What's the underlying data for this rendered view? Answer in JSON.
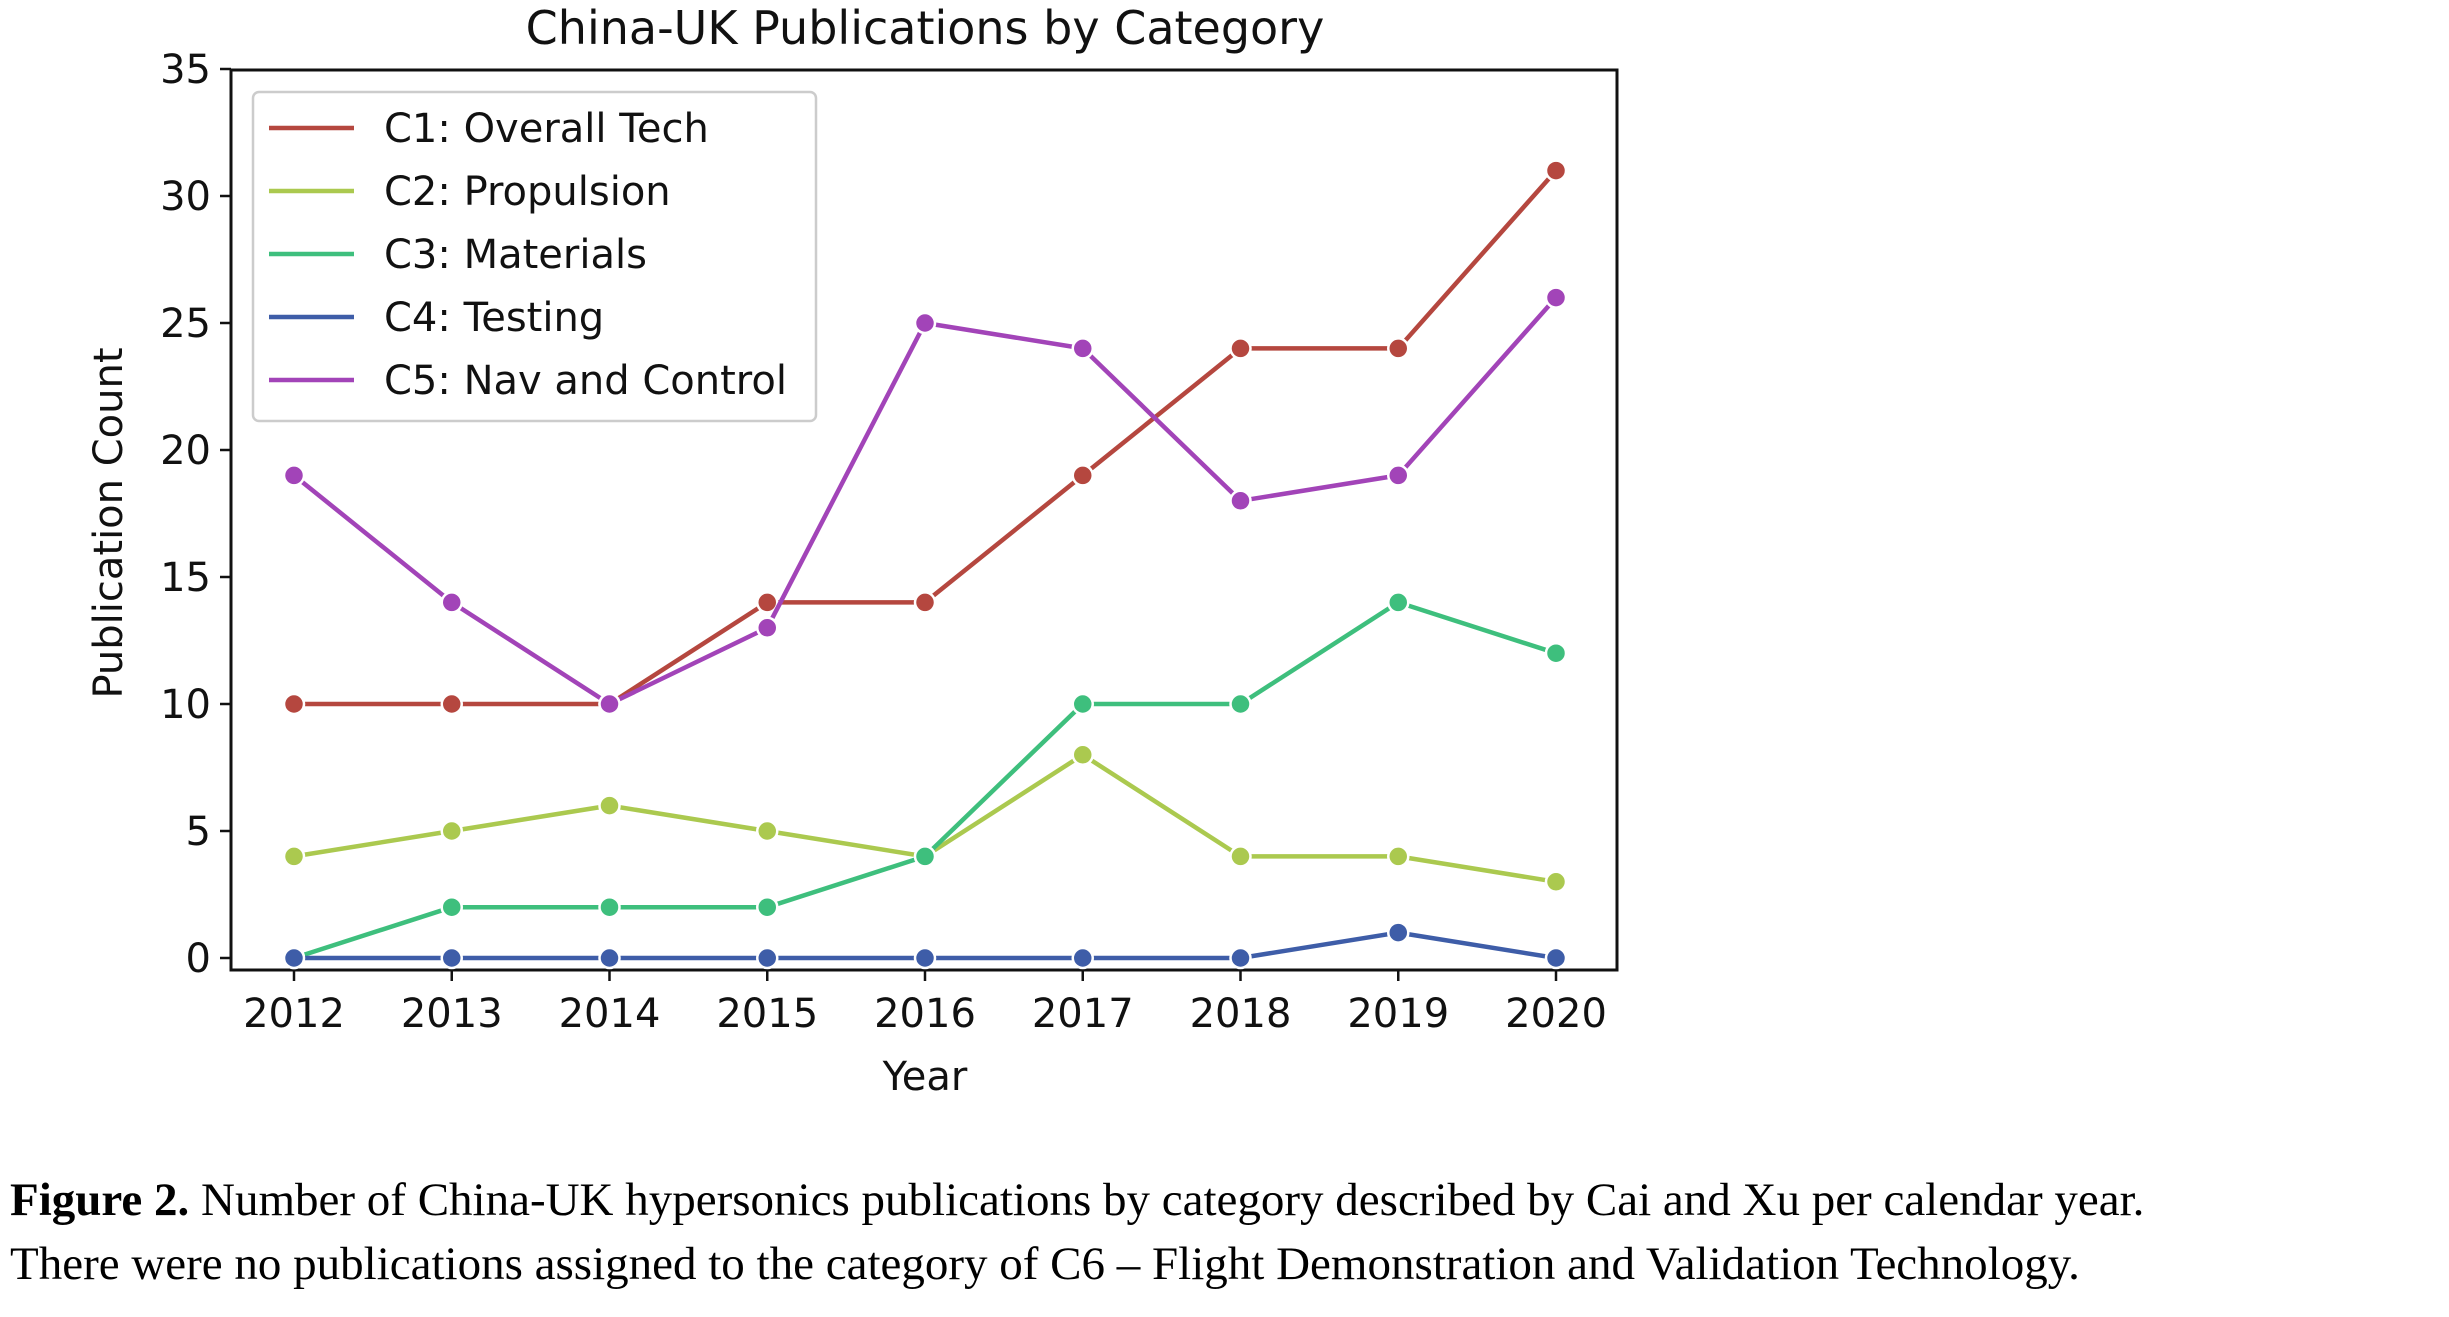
{
  "chart_data": {
    "type": "line",
    "title": "China-UK Publications by Category",
    "xlabel": "Year",
    "ylabel": "Publication Count",
    "x": [
      2012,
      2013,
      2014,
      2015,
      2016,
      2017,
      2018,
      2019,
      2020
    ],
    "ylim": [
      0,
      35
    ],
    "yticks": [
      0,
      5,
      10,
      15,
      20,
      25,
      30,
      35
    ],
    "grid": false,
    "legend_position": "top-left",
    "series": [
      {
        "name": "C1: Overall Tech",
        "color": "#b5473f",
        "values": [
          10,
          10,
          10,
          14,
          14,
          19,
          24,
          24,
          31
        ]
      },
      {
        "name": "C2: Propulsion",
        "color": "#abc94f",
        "values": [
          4,
          5,
          6,
          5,
          4,
          8,
          4,
          4,
          3
        ]
      },
      {
        "name": "C3: Materials",
        "color": "#3ebf7d",
        "values": [
          0,
          2,
          2,
          2,
          4,
          10,
          10,
          14,
          12
        ]
      },
      {
        "name": "C4: Testing",
        "color": "#3e5da8",
        "values": [
          0,
          0,
          0,
          0,
          0,
          0,
          0,
          1,
          0
        ]
      },
      {
        "name": "C5: Nav and Control",
        "color": "#a244b8",
        "values": [
          19,
          14,
          10,
          13,
          25,
          24,
          18,
          19,
          26
        ]
      }
    ]
  },
  "caption": {
    "label": "Figure 2.",
    "line1": " Number of China-UK hypersonics publications by category described by Cai and Xu per calendar year.",
    "line2": "There were no publications assigned to the category of C6 – Flight Demonstration and Validation Technology."
  }
}
